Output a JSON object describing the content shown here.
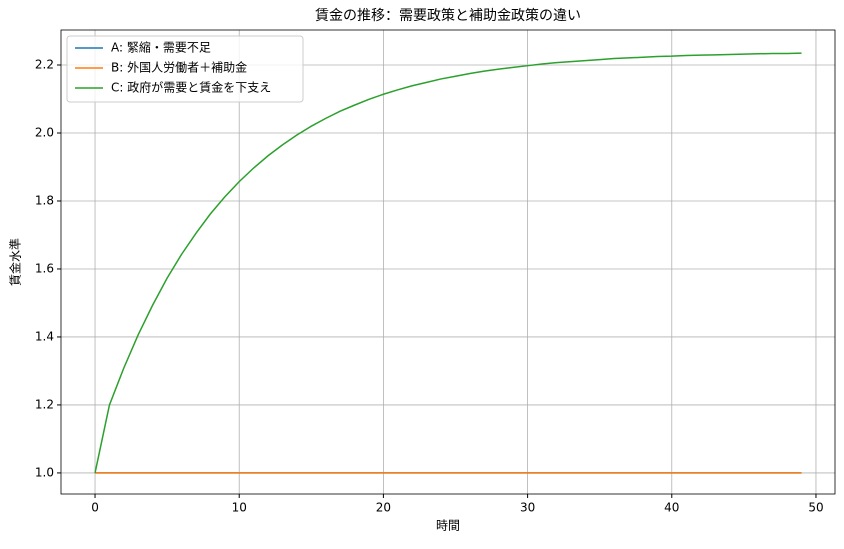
{
  "chart_data": {
    "type": "line",
    "title": "賃金の推移：需要政策と補助金政策の違い",
    "xlabel": "時間",
    "ylabel": "賃金水準",
    "x": [
      0,
      1,
      2,
      3,
      4,
      5,
      6,
      7,
      8,
      9,
      10,
      11,
      12,
      13,
      14,
      15,
      16,
      17,
      18,
      19,
      20,
      21,
      22,
      23,
      24,
      25,
      26,
      27,
      28,
      29,
      30,
      31,
      32,
      33,
      34,
      35,
      36,
      37,
      38,
      39,
      40,
      41,
      42,
      43,
      44,
      45,
      46,
      47,
      48,
      49
    ],
    "series": [
      {
        "name": "A: 緊縮・需要不足",
        "color": "#1f77b4",
        "values": [
          1,
          1,
          1,
          1,
          1,
          1,
          1,
          1,
          1,
          1,
          1,
          1,
          1,
          1,
          1,
          1,
          1,
          1,
          1,
          1,
          1,
          1,
          1,
          1,
          1,
          1,
          1,
          1,
          1,
          1,
          1,
          1,
          1,
          1,
          1,
          1,
          1,
          1,
          1,
          1,
          1,
          1,
          1,
          1,
          1,
          1,
          1,
          1,
          1,
          1
        ]
      },
      {
        "name": "B: 外国人労働者＋補助金",
        "color": "#ff7f0e",
        "values": [
          1,
          1,
          1,
          1,
          1,
          1,
          1,
          1,
          1,
          1,
          1,
          1,
          1,
          1,
          1,
          1,
          1,
          1,
          1,
          1,
          1,
          1,
          1,
          1,
          1,
          1,
          1,
          1,
          1,
          1,
          1,
          1,
          1,
          1,
          1,
          1,
          1,
          1,
          1,
          1,
          1,
          1,
          1,
          1,
          1,
          1,
          1,
          1,
          1,
          1
        ]
      },
      {
        "name": "C: 政府が需要と賃金を下支え",
        "color": "#2ca02c",
        "values": [
          1.0,
          1.2,
          1.309,
          1.407,
          1.494,
          1.573,
          1.643,
          1.705,
          1.762,
          1.812,
          1.857,
          1.897,
          1.933,
          1.965,
          1.994,
          2.02,
          2.043,
          2.064,
          2.082,
          2.099,
          2.114,
          2.127,
          2.139,
          2.149,
          2.159,
          2.167,
          2.175,
          2.182,
          2.188,
          2.193,
          2.198,
          2.203,
          2.207,
          2.21,
          2.213,
          2.216,
          2.219,
          2.221,
          2.223,
          2.225,
          2.226,
          2.228,
          2.229,
          2.23,
          2.231,
          2.232,
          2.233,
          2.234,
          2.234,
          2.235
        ]
      }
    ],
    "xlim": [
      -2.36,
      51.32
    ],
    "xticks": [
      0,
      10,
      20,
      30,
      40,
      50
    ],
    "ylim": [
      0.938,
      2.303
    ],
    "yticks": [
      {
        "value": 1,
        "label": "1.0"
      },
      {
        "value": 1.2,
        "label": "1.2"
      },
      {
        "value": 1.4,
        "label": "1.4"
      },
      {
        "value": 1.6,
        "label": "1.6"
      },
      {
        "value": 1.8,
        "label": "1.8"
      },
      {
        "value": 2,
        "label": "2.0"
      },
      {
        "value": 2.2,
        "label": "2.2"
      }
    ],
    "grid": true,
    "legend": "upper-left"
  }
}
